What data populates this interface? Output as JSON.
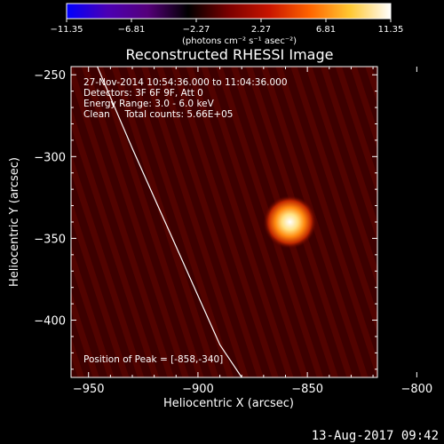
{
  "chart_data": {
    "type": "heatmap",
    "title": "Reconstructed RHESSI Image",
    "xlabel": "Heliocentric X (arcsec)",
    "ylabel": "Heliocentric Y (arcsec)",
    "xlim": [
      -958,
      -818
    ],
    "ylim": [
      -435,
      -245
    ],
    "xticks": [
      -950,
      -900,
      -850,
      -800
    ],
    "xtick_labels": [
      "−950",
      "−900",
      "−850",
      "−800"
    ],
    "yticks": [
      -250,
      -300,
      -350,
      -400
    ],
    "ytick_labels": [
      "−250",
      "−300",
      "−350",
      "−400"
    ],
    "source_peak": {
      "x": -858,
      "y": -340
    },
    "limb_curve": {
      "x": [
        -946,
        -938,
        -930,
        -920,
        -910,
        -900,
        -890,
        -885,
        -880
      ],
      "y": [
        -245,
        -270,
        -295,
        -325,
        -355,
        -385,
        -415,
        -425,
        -435
      ]
    },
    "colorbar": {
      "tick_labels": [
        "−11.35",
        "−6.81",
        "−2.27",
        "2.27",
        "6.81",
        "11.35"
      ],
      "unit_label": "(photons cm⁻² s⁻¹ asec⁻²)",
      "colors": [
        "#0000ff",
        "#4b00b4",
        "#55007a",
        "#000000",
        "#7a0000",
        "#c81400",
        "#ff6400",
        "#ffc832",
        "#ffffff"
      ]
    },
    "annotations": {
      "time": "27-Nov-2014 10:54:36.000 to 11:04:36.000",
      "detectors": "Detectors: 3F 6F 9F, Att 0",
      "energy": "Energy Range: 3.0 - 6.0 keV",
      "clean": "Clean     Total counts: 5.66E+05",
      "peak": "Position of Peak = [-858,-340]"
    },
    "footer_date": "13-Aug-2017 09:42"
  }
}
